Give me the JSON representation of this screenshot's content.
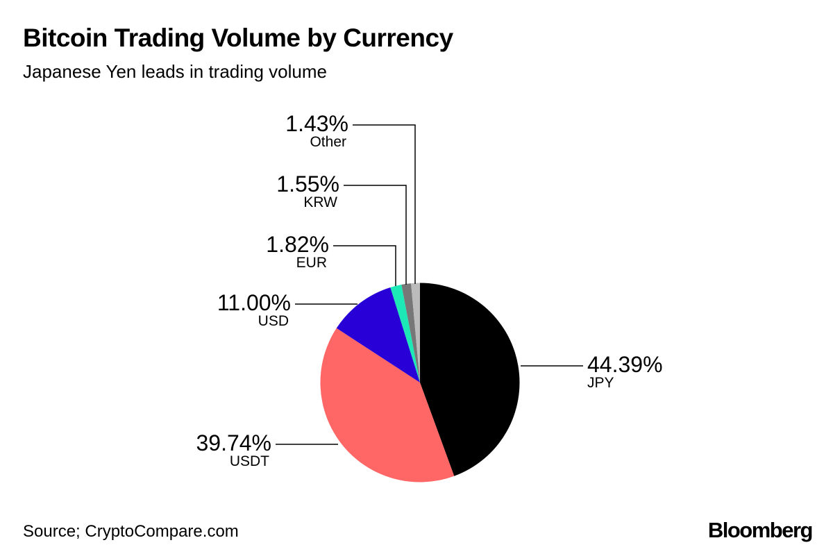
{
  "chart_data": {
    "type": "pie",
    "title": "Bitcoin Trading Volume by Currency",
    "subtitle": "Japanese Yen leads in trading volume",
    "source": "Source; CryptoCompare.com",
    "logo": "Bloomberg",
    "slices": [
      {
        "label": "JPY",
        "value": 44.39,
        "value_label": "44.39%",
        "color": "#000000"
      },
      {
        "label": "USDT",
        "value": 39.74,
        "value_label": "39.74%",
        "color": "#ff6666"
      },
      {
        "label": "USD",
        "value": 11.0,
        "value_label": "11.00%",
        "color": "#2800d7"
      },
      {
        "label": "EUR",
        "value": 1.82,
        "value_label": "1.82%",
        "color": "#1de9b6"
      },
      {
        "label": "KRW",
        "value": 1.55,
        "value_label": "1.55%",
        "color": "#777777"
      },
      {
        "label": "Other",
        "value": 1.43,
        "value_label": "1.43%",
        "color": "#bbbbbb"
      }
    ],
    "start_angle": "12 o'clock",
    "direction": "clockwise",
    "legend": "none"
  }
}
